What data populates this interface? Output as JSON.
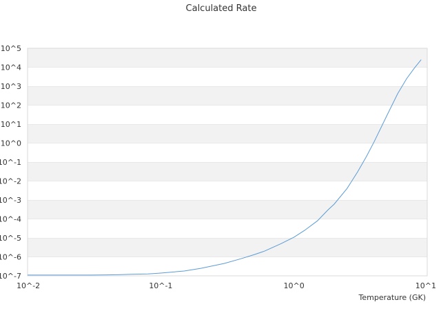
{
  "chart_data": {
    "type": "line",
    "title": "Calculated Rate",
    "xlabel": "Temperature (GK)",
    "ylabel": "",
    "x_scale": "log",
    "y_scale": "log",
    "xlim": [
      0.01,
      10
    ],
    "ylim": [
      1e-07,
      100000
    ],
    "grid": "alternating horizontal bands",
    "x_ticks": [
      {
        "value": 0.01,
        "label": "10^-2"
      },
      {
        "value": 0.1,
        "label": "10^-1"
      },
      {
        "value": 1,
        "label": "10^0"
      },
      {
        "value": 10,
        "label": "10^1"
      }
    ],
    "y_ticks": [
      {
        "value": 1e-07,
        "label": "10^-7"
      },
      {
        "value": 1e-06,
        "label": "10^-6"
      },
      {
        "value": 1e-05,
        "label": "10^-5"
      },
      {
        "value": 0.0001,
        "label": "10^-4"
      },
      {
        "value": 0.001,
        "label": "10^-3"
      },
      {
        "value": 0.01,
        "label": "10^-2"
      },
      {
        "value": 0.1,
        "label": "10^-1"
      },
      {
        "value": 1,
        "label": "10^0"
      },
      {
        "value": 10,
        "label": "10^1"
      },
      {
        "value": 100,
        "label": "10^2"
      },
      {
        "value": 1000,
        "label": "10^3"
      },
      {
        "value": 10000,
        "label": "10^4"
      },
      {
        "value": 100000,
        "label": "10^5"
      }
    ],
    "series": [
      {
        "color": "#5b9bd5",
        "points": [
          [
            0.01,
            1.1e-07
          ],
          [
            0.02,
            1.1e-07
          ],
          [
            0.03,
            1.1e-07
          ],
          [
            0.04,
            1.12e-07
          ],
          [
            0.05,
            1.15e-07
          ],
          [
            0.06,
            1.2e-07
          ],
          [
            0.08,
            1.25e-07
          ],
          [
            0.1,
            1.4e-07
          ],
          [
            0.15,
            1.8e-07
          ],
          [
            0.2,
            2.5e-07
          ],
          [
            0.3,
            4.5e-07
          ],
          [
            0.4,
            8e-07
          ],
          [
            0.5,
            1.3e-06
          ],
          [
            0.6,
            2e-06
          ],
          [
            0.8,
            5e-06
          ],
          [
            1.0,
            1.1e-05
          ],
          [
            1.2,
            2.5e-05
          ],
          [
            1.5,
            8e-05
          ],
          [
            1.8,
            0.0003
          ],
          [
            2.0,
            0.0006
          ],
          [
            2.5,
            0.004
          ],
          [
            3.0,
            0.03
          ],
          [
            3.5,
            0.2
          ],
          [
            4.0,
            1.2
          ],
          [
            5.0,
            30
          ],
          [
            6.0,
            400
          ],
          [
            7.0,
            2500
          ],
          [
            8.0,
            9000
          ],
          [
            9.0,
            25000
          ]
        ]
      }
    ]
  }
}
